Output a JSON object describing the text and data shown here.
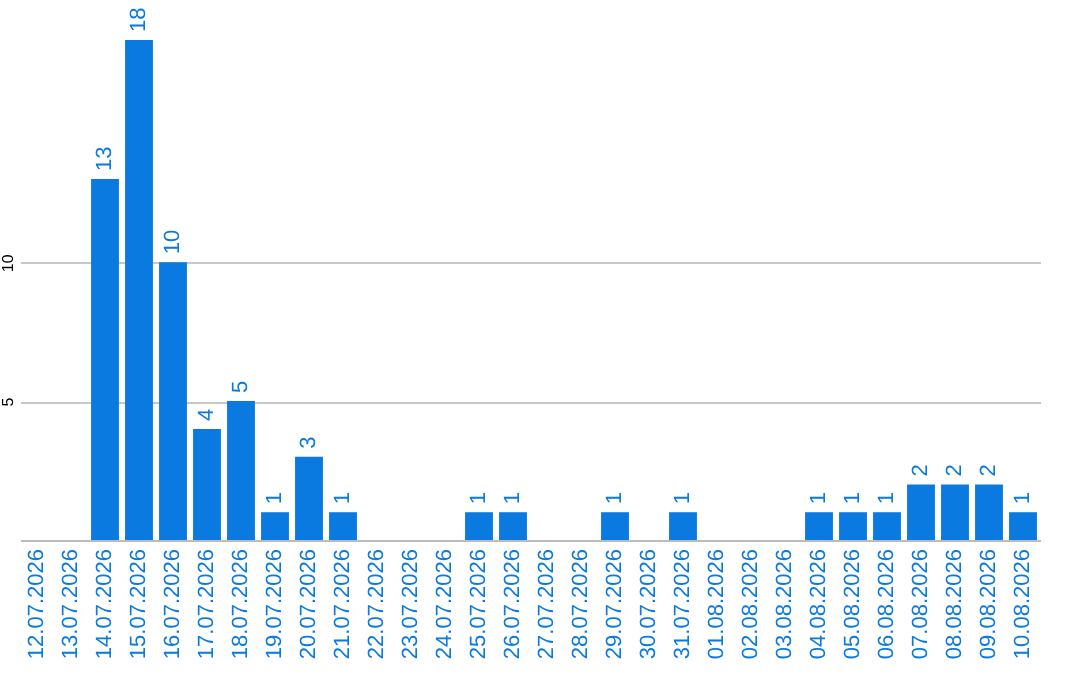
{
  "chart_data": {
    "type": "bar",
    "categories": [
      "12.07.2026",
      "13.07.2026",
      "14.07.2026",
      "15.07.2026",
      "16.07.2026",
      "17.07.2026",
      "18.07.2026",
      "19.07.2026",
      "20.07.2026",
      "21.07.2026",
      "22.07.2026",
      "23.07.2026",
      "24.07.2026",
      "25.07.2026",
      "26.07.2026",
      "27.07.2026",
      "28.07.2026",
      "29.07.2026",
      "30.07.2026",
      "31.07.2026",
      "01.08.2026",
      "02.08.2026",
      "03.08.2026",
      "04.08.2026",
      "05.08.2026",
      "06.08.2026",
      "07.08.2026",
      "08.08.2026",
      "09.08.2026",
      "10.08.2026"
    ],
    "values": [
      0,
      0,
      13,
      18,
      10,
      4,
      5,
      1,
      3,
      1,
      0,
      0,
      0,
      1,
      1,
      0,
      0,
      1,
      0,
      1,
      0,
      0,
      0,
      1,
      1,
      1,
      2,
      2,
      2,
      1
    ],
    "value_labels": [
      null,
      null,
      "13",
      "18",
      "10",
      "4",
      "5",
      "1",
      "3",
      "1",
      null,
      null,
      null,
      "1",
      "1",
      null,
      null,
      "1",
      null,
      "1",
      null,
      null,
      null,
      "1",
      "1",
      "1",
      "2",
      "2",
      "2",
      "1"
    ],
    "color": "#0a7ae0",
    "ylim": [
      0,
      19.44
    ],
    "yticks": [
      5,
      10
    ],
    "grid": "y"
  }
}
